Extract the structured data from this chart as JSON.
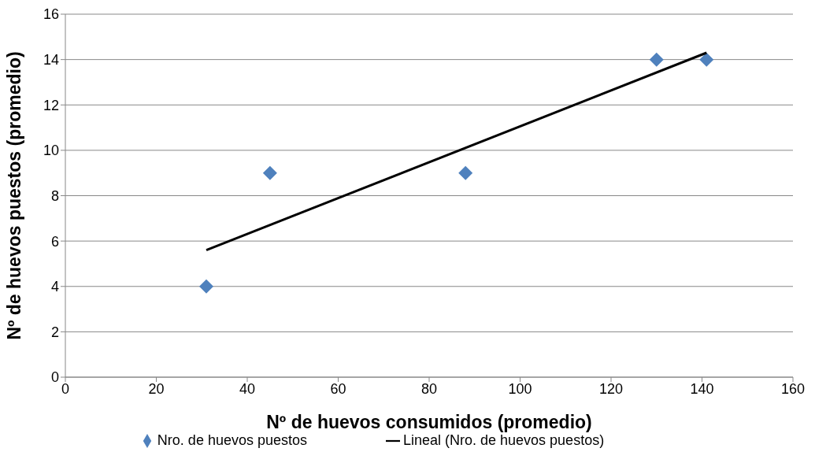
{
  "chart_data": {
    "type": "scatter",
    "xlabel": "Nº de huevos consumidos (promedio)",
    "ylabel": "Nº  de huevos puestos (promedio)",
    "series": [
      {
        "name": "Nro. de huevos puestos",
        "color": "#4f81bd",
        "marker": "diamond",
        "x": [
          31,
          45,
          88,
          130,
          141
        ],
        "values": [
          4,
          9,
          9,
          14,
          14
        ]
      },
      {
        "name": "Lineal (Nro. de huevos puestos)",
        "type": "line",
        "color": "#000000",
        "marker": "none",
        "x": [
          31,
          141
        ],
        "values": [
          5.6,
          14.3
        ]
      }
    ],
    "xlim": [
      0,
      160
    ],
    "xticks": [
      0,
      20,
      40,
      60,
      80,
      100,
      120,
      140,
      160
    ],
    "ylim": [
      0,
      16
    ],
    "yticks": [
      0,
      2,
      4,
      6,
      8,
      10,
      12,
      14,
      16
    ],
    "grid": "y",
    "legend": "bottom"
  }
}
